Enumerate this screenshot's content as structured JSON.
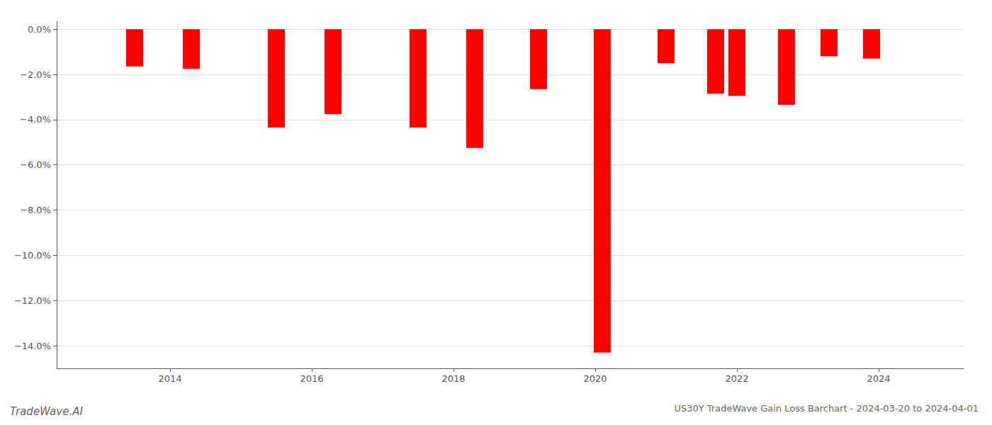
{
  "chart_data": {
    "type": "bar",
    "title": "US30Y TradeWave Gain Loss Barchart - 2024-03-20 to 2024-04-01",
    "annotations": [
      "TradeWave.AI"
    ],
    "x": [
      2013.5,
      2014.3,
      2015.5,
      2016.3,
      2017.5,
      2018.3,
      2019.2,
      2020.1,
      2021.0,
      2021.7,
      2022.0,
      2022.7,
      2023.3,
      2023.9
    ],
    "values": [
      -1.65,
      -1.75,
      -4.35,
      -3.75,
      -4.35,
      -5.25,
      -2.65,
      -14.3,
      -1.5,
      -2.85,
      -2.95,
      -3.35,
      -1.2,
      -1.3
    ],
    "color": "#ff0000",
    "xlim": [
      2012.4,
      2025.2
    ],
    "xticks": [
      2014,
      2016,
      2018,
      2020,
      2022,
      2024
    ],
    "ylim": [
      -15.0,
      0.35
    ],
    "yticks": [
      {
        "value": 0.0,
        "label": "0.0%"
      },
      {
        "value": -2.0,
        "label": "−2.0%"
      },
      {
        "value": -4.0,
        "label": "−4.0%"
      },
      {
        "value": -6.0,
        "label": "−6.0%"
      },
      {
        "value": -8.0,
        "label": "−8.0%"
      },
      {
        "value": -10.0,
        "label": "−10.0%"
      },
      {
        "value": -12.0,
        "label": "−12.0%"
      },
      {
        "value": -14.0,
        "label": "−14.0%"
      }
    ],
    "grid": true
  }
}
